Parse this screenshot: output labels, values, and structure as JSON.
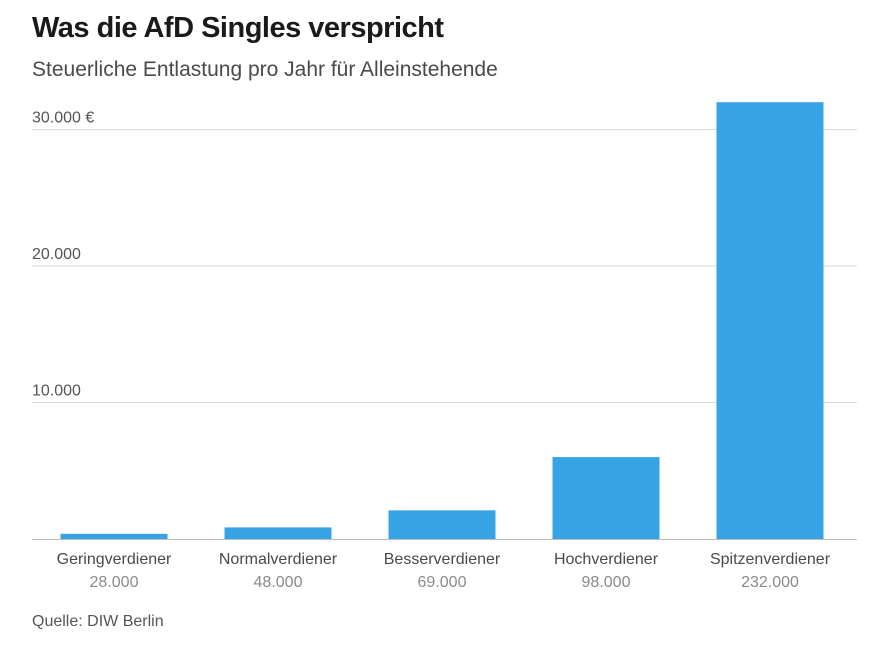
{
  "header": {
    "title": "Was die AfD Singles verspricht",
    "subtitle": "Steuerliche Entlastung pro Jahr für Alleinstehende"
  },
  "footer": {
    "source": "Quelle: DIW Berlin"
  },
  "colors": {
    "bar": "#36a4e4",
    "grid": "#d9d9d9",
    "baseline": "#bdbdbd"
  },
  "chart_data": {
    "type": "bar",
    "title": "Was die AfD Singles verspricht",
    "subtitle": "Steuerliche Entlastung pro Jahr für Alleinstehende",
    "xlabel": "",
    "ylabel": "",
    "ylim": [
      0,
      32000
    ],
    "yticks": [
      10000,
      20000,
      30000
    ],
    "ytick_labels": [
      "10.000",
      "20.000",
      "30.000 €"
    ],
    "grid": true,
    "categories": [
      "Geringverdiener",
      "Normalverdiener",
      "Besserverdiener",
      "Hochverdiener",
      "Spitzenverdiener"
    ],
    "incomes": [
      "28.000",
      "48.000",
      "69.000",
      "98.000",
      "232.000"
    ],
    "values": [
      380,
      850,
      2100,
      6000,
      32000
    ],
    "source": "Quelle: DIW Berlin"
  }
}
